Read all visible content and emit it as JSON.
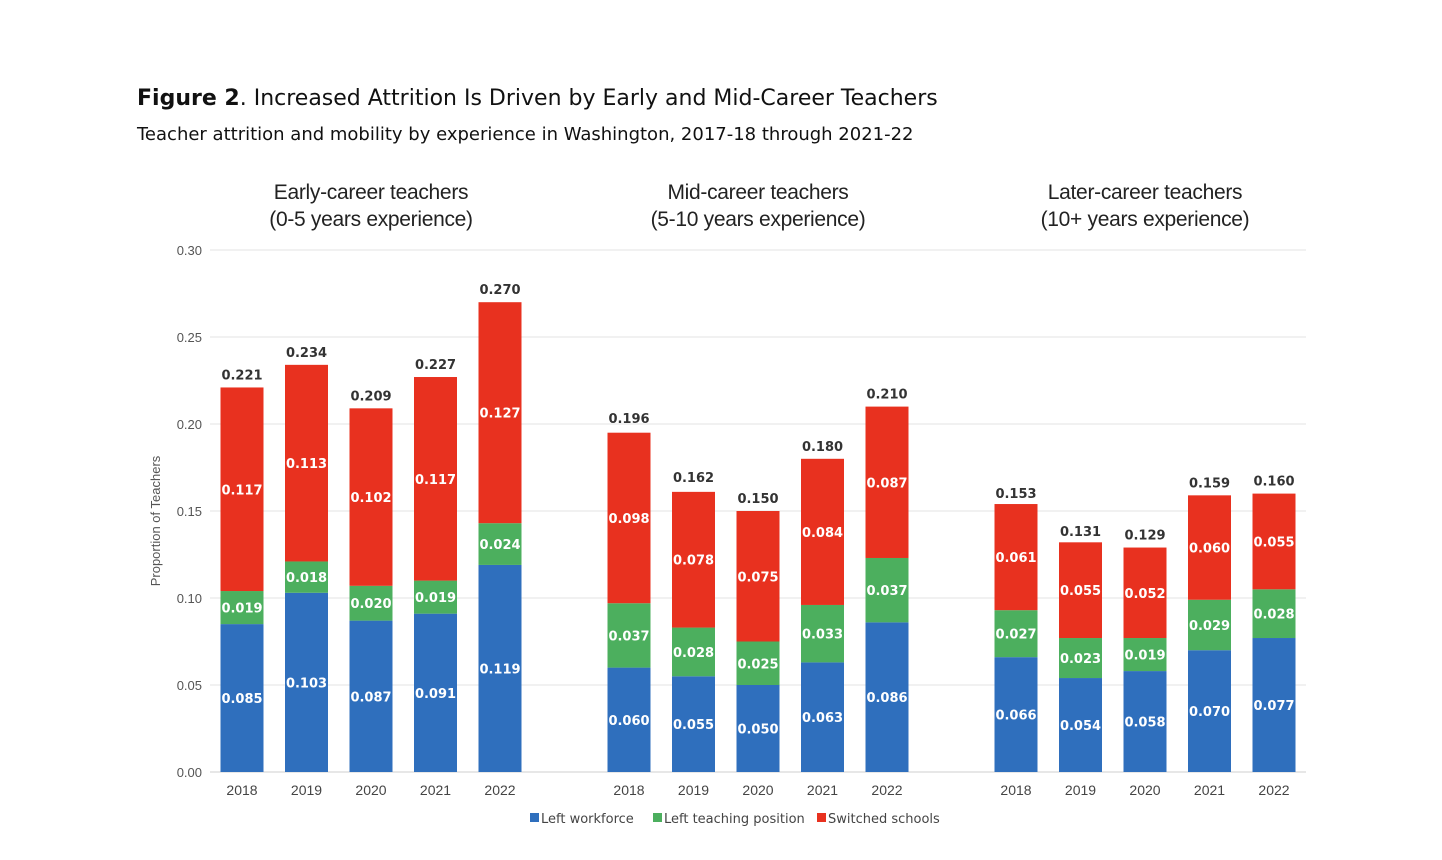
{
  "figure": {
    "label": "Figure 2",
    "title_rest": ". Increased Attrition Is Driven by Early and Mid-Career Teachers",
    "subtitle": "Teacher attrition and mobility by experience in Washington, 2017-18 through 2021-22"
  },
  "chart_data": {
    "type": "bar",
    "stacked": true,
    "ylabel": "Proportion of Teachers",
    "ylim": [
      0,
      0.3
    ],
    "yticks": [
      "0.00",
      "0.05",
      "0.10",
      "0.15",
      "0.20",
      "0.25",
      "0.30"
    ],
    "grid": true,
    "legend_position": "bottom",
    "series": [
      {
        "name": "Left workforce",
        "color": "#2f6fbd"
      },
      {
        "name": "Left teaching position",
        "color": "#4caf5e"
      },
      {
        "name": "Switched schools",
        "color": "#e8311f"
      }
    ],
    "groups": [
      {
        "title_line1": "Early-career teachers",
        "title_line2": "(0-5 years experience)",
        "categories": [
          "2018",
          "2019",
          "2020",
          "2021",
          "2022"
        ],
        "values": [
          [
            0.085,
            0.103,
            0.087,
            0.091,
            0.119
          ],
          [
            0.019,
            0.018,
            0.02,
            0.019,
            0.024
          ],
          [
            0.117,
            0.113,
            0.102,
            0.117,
            0.127
          ]
        ],
        "labels": [
          [
            "0.085",
            "0.103",
            "0.087",
            "0.091",
            "0.119"
          ],
          [
            "0.019",
            "0.018",
            "0.020",
            "0.019",
            "0.024"
          ],
          [
            "0.117",
            "0.113",
            "0.102",
            "0.117",
            "0.127"
          ]
        ],
        "totals": [
          "0.221",
          "0.234",
          "0.209",
          "0.227",
          "0.270"
        ]
      },
      {
        "title_line1": "Mid-career teachers",
        "title_line2": "(5-10 years experience)",
        "categories": [
          "2018",
          "2019",
          "2020",
          "2021",
          "2022"
        ],
        "values": [
          [
            0.06,
            0.055,
            0.05,
            0.063,
            0.086
          ],
          [
            0.037,
            0.028,
            0.025,
            0.033,
            0.037
          ],
          [
            0.098,
            0.078,
            0.075,
            0.084,
            0.087
          ]
        ],
        "labels": [
          [
            "0.060",
            "0.055",
            "0.050",
            "0.063",
            "0.086"
          ],
          [
            "0.037",
            "0.028",
            "0.025",
            "0.033",
            "0.037"
          ],
          [
            "0.098",
            "0.078",
            "0.075",
            "0.084",
            "0.087"
          ]
        ],
        "totals": [
          "0.196",
          "0.162",
          "0.150",
          "0.180",
          "0.210"
        ]
      },
      {
        "title_line1": "Later-career teachers",
        "title_line2": "(10+ years experience)",
        "categories": [
          "2018",
          "2019",
          "2020",
          "2021",
          "2022"
        ],
        "values": [
          [
            0.066,
            0.054,
            0.058,
            0.07,
            0.077
          ],
          [
            0.027,
            0.023,
            0.019,
            0.029,
            0.028
          ],
          [
            0.061,
            0.055,
            0.052,
            0.06,
            0.055
          ]
        ],
        "labels": [
          [
            "0.066",
            "0.054",
            "0.058",
            "0.070",
            "0.077"
          ],
          [
            "0.027",
            "0.023",
            "0.019",
            "0.029",
            "0.028"
          ],
          [
            "0.061",
            "0.055",
            "0.052",
            "0.060",
            "0.055"
          ]
        ],
        "totals": [
          "0.153",
          "0.131",
          "0.129",
          "0.159",
          "0.160"
        ]
      }
    ]
  }
}
